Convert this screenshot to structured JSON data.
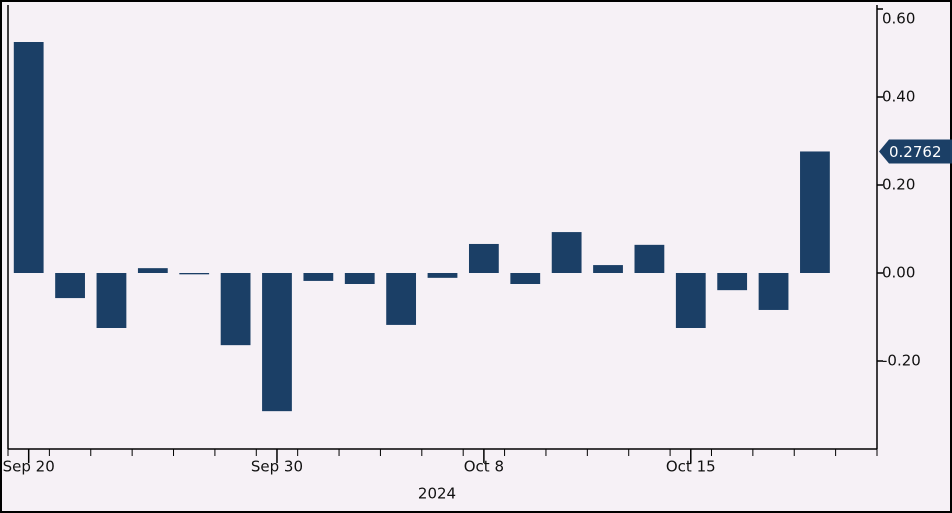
{
  "chart_data": {
    "type": "bar",
    "categories": [
      "Sep 20",
      null,
      null,
      null,
      null,
      null,
      "Sep 30",
      null,
      null,
      null,
      null,
      "Oct 8",
      null,
      null,
      null,
      null,
      "Oct 15",
      null,
      null,
      null
    ],
    "values": [
      0.525,
      -0.057,
      -0.125,
      0.011,
      -0.003,
      -0.164,
      -0.314,
      -0.018,
      -0.025,
      -0.118,
      -0.011,
      0.066,
      -0.025,
      0.093,
      0.018,
      0.064,
      -0.125,
      -0.039,
      -0.084,
      0.2762
    ],
    "color": "#1b3f66",
    "x_label": "2024",
    "ylim": [
      -0.4,
      0.6
    ],
    "yticks": [
      {
        "value": 0.6,
        "label": "0.60"
      },
      {
        "value": 0.4,
        "label": "0.40"
      },
      {
        "value": 0.2,
        "label": "0.20"
      },
      {
        "value": 0,
        "label": "0.00"
      },
      {
        "value": -0.2,
        "label": "-0.20"
      }
    ],
    "grid": false
  }
}
